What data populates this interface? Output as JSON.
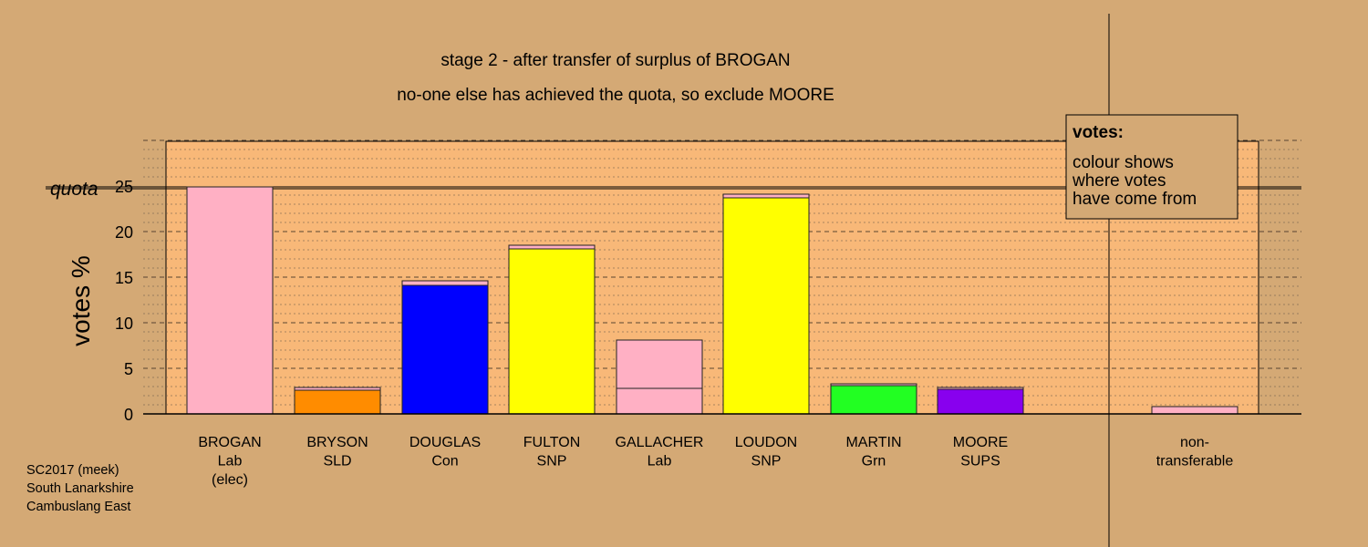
{
  "chart_data": {
    "type": "bar",
    "title": "stage 2 - after transfer of surplus of BROGAN",
    "subtitle": "no-one else has achieved the quota, so exclude MOORE",
    "ylabel": "votes %",
    "ylim": [
      0,
      30
    ],
    "yticks": [
      0,
      5,
      10,
      15,
      20,
      25
    ],
    "quota": 25,
    "quota_label": "quota",
    "categories": [
      {
        "lines": [
          "BROGAN",
          "Lab",
          "(elec)"
        ]
      },
      {
        "lines": [
          "BRYSON",
          "SLD"
        ]
      },
      {
        "lines": [
          "DOUGLAS",
          "Con"
        ]
      },
      {
        "lines": [
          "FULTON",
          "SNP"
        ]
      },
      {
        "lines": [
          "GALLACHER",
          "Lab"
        ]
      },
      {
        "lines": [
          "LOUDON",
          "SNP"
        ]
      },
      {
        "lines": [
          "MARTIN",
          "Grn"
        ]
      },
      {
        "lines": [
          "MOORE",
          "SUPS"
        ]
      },
      {
        "lines": [
          "non-",
          "transferable"
        ]
      }
    ],
    "bars": [
      {
        "segments": [
          {
            "value": 24.9,
            "color": "#ffb0c4"
          }
        ]
      },
      {
        "segments": [
          {
            "value": 2.6,
            "color": "#ff8c00"
          },
          {
            "value": 0.3,
            "color": "#ffb0c4"
          }
        ]
      },
      {
        "segments": [
          {
            "value": 14.1,
            "color": "#0000ff"
          },
          {
            "value": 0.5,
            "color": "#ffb0c4"
          }
        ]
      },
      {
        "segments": [
          {
            "value": 18.1,
            "color": "#ffff00"
          },
          {
            "value": 0.4,
            "color": "#ffb0c4"
          }
        ]
      },
      {
        "segments": [
          {
            "value": 2.8,
            "color": "#ffb0c4"
          },
          {
            "value": 5.3,
            "color": "#ffb0c4"
          }
        ]
      },
      {
        "segments": [
          {
            "value": 23.7,
            "color": "#ffff00"
          },
          {
            "value": 0.4,
            "color": "#ffb0c4"
          }
        ]
      },
      {
        "segments": [
          {
            "value": 3.1,
            "color": "#22ff22"
          },
          {
            "value": 0.2,
            "color": "#ffb0c4"
          }
        ]
      },
      {
        "segments": [
          {
            "value": 2.7,
            "color": "#8800ee"
          },
          {
            "value": 0.2,
            "color": "#ffb0c4"
          }
        ]
      },
      {
        "segments": [
          {
            "value": 0.8,
            "color": "#ffb0c4"
          }
        ]
      }
    ],
    "colors": {
      "background": "#d4a975",
      "plot_fill": "#f8b878",
      "legend_fill": "#d4a975"
    },
    "grid": true
  },
  "legend": {
    "title": "votes:",
    "lines": [
      "colour shows",
      "where votes",
      "have come from"
    ]
  },
  "footer": {
    "lines": [
      "SC2017 (meek)",
      "South Lanarkshire",
      "Cambuslang East"
    ]
  }
}
